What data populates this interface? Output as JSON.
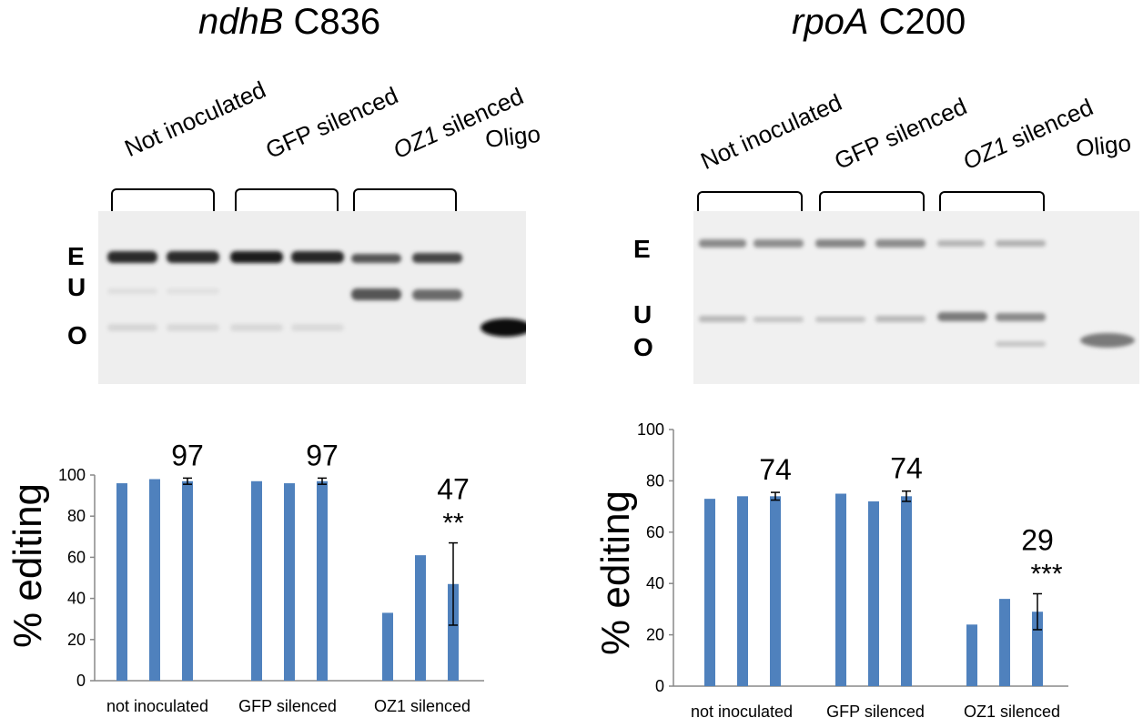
{
  "panels": [
    {
      "title_gene": "ndhB",
      "title_site": "C836",
      "lanes": [
        {
          "label": "Not inoculated",
          "italic": ""
        },
        {
          "label": " silenced",
          "italic": "GFP"
        },
        {
          "label": " silenced",
          "italic": "OZ1"
        },
        {
          "label": "Oligo",
          "italic": ""
        }
      ],
      "band_labels": [
        "E",
        "U",
        "O"
      ]
    },
    {
      "title_gene": "rpoA",
      "title_site": "C200",
      "lanes": [
        {
          "label": "Not inoculated",
          "italic": ""
        },
        {
          "label": " silenced",
          "italic": "GFP"
        },
        {
          "label": " silenced",
          "italic": "OZ1"
        },
        {
          "label": "Oligo",
          "italic": ""
        }
      ],
      "band_labels": [
        "E",
        "U",
        "O"
      ]
    }
  ],
  "chart_data": [
    {
      "type": "bar",
      "ylabel": "% editing",
      "ylim": [
        0,
        100
      ],
      "yticks": [
        0,
        20,
        40,
        60,
        80,
        100
      ],
      "groups": [
        "not inoculated",
        "GFP silenced",
        "OZ1 silenced"
      ],
      "values": [
        [
          96,
          98,
          97
        ],
        [
          97,
          96,
          97
        ],
        [
          33,
          61,
          47
        ]
      ],
      "error": [
        [
          0,
          0,
          1.5
        ],
        [
          0,
          0,
          1.5
        ],
        [
          0,
          0,
          20
        ]
      ],
      "annotations": [
        "97",
        "97",
        "47"
      ],
      "significance": [
        "",
        "",
        "**"
      ],
      "bar_color": "#4f81bd"
    },
    {
      "type": "bar",
      "ylabel": "% editing",
      "ylim": [
        0,
        100
      ],
      "yticks": [
        0,
        20,
        40,
        60,
        80,
        100
      ],
      "groups": [
        "not inoculated",
        "GFP silenced",
        "OZ1 silenced"
      ],
      "values": [
        [
          73,
          74,
          74
        ],
        [
          75,
          72,
          74
        ],
        [
          24,
          34,
          29
        ]
      ],
      "error": [
        [
          0,
          0,
          1.5
        ],
        [
          0,
          0,
          2
        ],
        [
          0,
          0,
          7
        ]
      ],
      "annotations": [
        "74",
        "74",
        "29"
      ],
      "significance": [
        "",
        "",
        "***"
      ],
      "bar_color": "#4f81bd"
    }
  ]
}
